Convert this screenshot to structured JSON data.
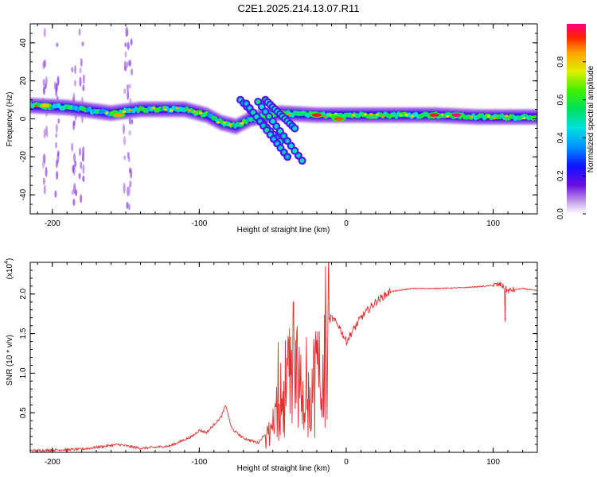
{
  "title": "C2E1.2025.214.13.07.R11",
  "chart_data": [
    {
      "type": "heatmap",
      "xlabel": "Height of straight line (km)",
      "ylabel": "Frequency (Hz)",
      "xlim": [
        -215,
        130
      ],
      "ylim": [
        -50,
        50
      ],
      "xticks": [
        "-200",
        "-100",
        "0",
        "100"
      ],
      "xtick_values": [
        -200,
        -100,
        0,
        100
      ],
      "yticks": [
        "40",
        "20",
        "0",
        "-20",
        "-40"
      ],
      "ytick_values": [
        40,
        20,
        0,
        -20,
        -40
      ],
      "colorbar": {
        "label": "Normalized spectral amplitude",
        "ticks": [
          "0.0",
          "0.2",
          "0.4",
          "0.6",
          "0.8"
        ],
        "tick_values": [
          0.0,
          0.2,
          0.4,
          0.6,
          0.8
        ],
        "range": [
          0,
          1
        ]
      },
      "ridge": [
        {
          "x": -215,
          "f": 7
        },
        {
          "x": -190,
          "f": 6
        },
        {
          "x": -160,
          "f": 3
        },
        {
          "x": -140,
          "f": 5
        },
        {
          "x": -110,
          "f": 5
        },
        {
          "x": -95,
          "f": 2
        },
        {
          "x": -85,
          "f": -2
        },
        {
          "x": -75,
          "f": -4
        },
        {
          "x": -65,
          "f": 0
        },
        {
          "x": -45,
          "f": 3
        },
        {
          "x": -20,
          "f": 2
        },
        {
          "x": 0,
          "f": 2
        },
        {
          "x": 20,
          "f": 2
        },
        {
          "x": 60,
          "f": 2
        },
        {
          "x": 90,
          "f": 1
        },
        {
          "x": 130,
          "f": 1
        }
      ],
      "branches": [
        {
          "x0": -72,
          "f0": 10,
          "x1": -45,
          "f1": -12
        },
        {
          "x0": -68,
          "f0": 8,
          "x1": -40,
          "f1": -20
        },
        {
          "x0": -60,
          "f0": 9,
          "x1": -30,
          "f1": -22
        },
        {
          "x0": -55,
          "f0": 10,
          "x1": -35,
          "f1": -5
        }
      ],
      "hotspots": [
        {
          "x": -20,
          "f": 2,
          "amp": 0.95
        },
        {
          "x": -5,
          "f": 0,
          "amp": 0.9
        },
        {
          "x": 60,
          "f": 2,
          "amp": 0.95
        },
        {
          "x": 75,
          "f": 2,
          "amp": 1.0
        },
        {
          "x": -155,
          "f": 2,
          "amp": 0.85
        },
        {
          "x": -205,
          "f": 7,
          "amp": 0.8
        }
      ]
    },
    {
      "type": "line",
      "xlabel": "Height of straight line (km)",
      "ylabel": "SNR (10 * v/v)",
      "y_multiplier": "(x10",
      "y_multiplier_exp": "4",
      "xlim": [
        -215,
        130
      ],
      "ylim": [
        0,
        2.4
      ],
      "xticks": [
        "-200",
        "-100",
        "0",
        "100"
      ],
      "xtick_values": [
        -200,
        -100,
        0,
        100
      ],
      "yticks": [
        "0.5",
        "1.0",
        "1.5",
        "2.0"
      ],
      "ytick_values": [
        0.5,
        1.0,
        1.5,
        2.0
      ],
      "series": [
        {
          "color": "#e53030",
          "points": [
            [
              -215,
              0.02
            ],
            [
              -180,
              0.04
            ],
            [
              -155,
              0.1
            ],
            [
              -140,
              0.05
            ],
            [
              -120,
              0.08
            ],
            [
              -105,
              0.2
            ],
            [
              -100,
              0.28
            ],
            [
              -95,
              0.25
            ],
            [
              -85,
              0.45
            ],
            [
              -82,
              0.6
            ],
            [
              -78,
              0.3
            ],
            [
              -70,
              0.18
            ],
            [
              -60,
              0.12
            ],
            [
              -50,
              0.35
            ],
            [
              -45,
              0.9
            ],
            [
              -40,
              1.2
            ],
            [
              -35,
              1.3
            ],
            [
              -30,
              1.2
            ],
            [
              -25,
              1.0
            ],
            [
              -20,
              1.3
            ],
            [
              -15,
              1.6
            ],
            [
              -10,
              1.7
            ],
            [
              -5,
              1.6
            ],
            [
              0,
              1.4
            ],
            [
              10,
              1.7
            ],
            [
              20,
              1.9
            ],
            [
              30,
              2.03
            ],
            [
              45,
              2.07
            ],
            [
              60,
              2.07
            ],
            [
              80,
              2.08
            ],
            [
              95,
              2.1
            ],
            [
              105,
              2.12
            ],
            [
              110,
              2.04
            ],
            [
              120,
              2.07
            ],
            [
              130,
              2.04
            ]
          ],
          "noise_regions": [
            {
              "x0": -55,
              "x1": -12,
              "amp": 1.2
            },
            {
              "x0": -12,
              "x1": 30,
              "amp": 0.25
            },
            {
              "x0": 100,
              "x1": 115,
              "amp": 0.2
            }
          ],
          "peaks": [
            {
              "x": -14,
              "y": 2.35
            },
            {
              "x": -36,
              "y": 1.9
            },
            {
              "x": 108,
              "y": 2.33
            },
            {
              "x": 108,
              "y": 1.65
            }
          ]
        }
      ]
    }
  ]
}
